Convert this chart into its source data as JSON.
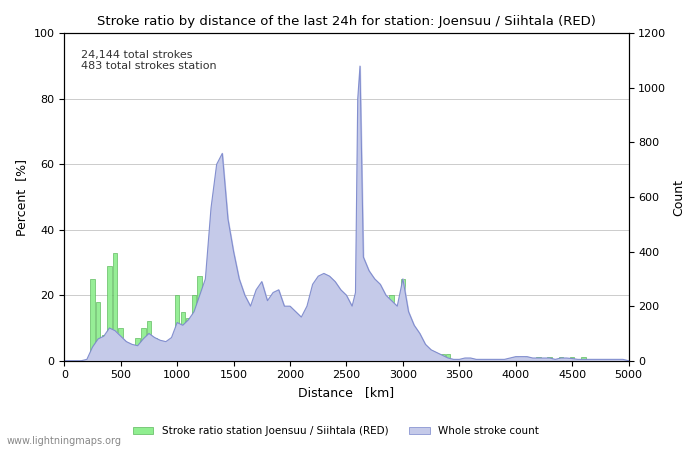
{
  "title": "Stroke ratio by distance of the last 24h for station: Joensuu / Siihtala (RED)",
  "annotation_line1": "24,144 total strokes",
  "annotation_line2": "483 total strokes station",
  "xlabel": "Distance   [km]",
  "ylabel_left": "Percent  [%]",
  "ylabel_right": "Count",
  "xlim": [
    0,
    5000
  ],
  "ylim_left": [
    0,
    100
  ],
  "ylim_right": [
    0,
    1200
  ],
  "yticks_left": [
    0,
    20,
    40,
    60,
    80,
    100
  ],
  "yticks_right": [
    0,
    200,
    400,
    600,
    800,
    1000,
    1200
  ],
  "xticks": [
    0,
    500,
    1000,
    1500,
    2000,
    2500,
    3000,
    3500,
    4000,
    4500,
    5000
  ],
  "watermark": "www.lightningmaps.org",
  "legend_green": "Stroke ratio station Joensuu / Siihtala (RED)",
  "legend_blue": "Whole stroke count",
  "bg_color": "#ffffff",
  "grid_color": "#cccccc",
  "green_color": "#90ee90",
  "green_edge": "#5cb85c",
  "blue_color": "#c5cae9",
  "blue_edge": "#7986cb",
  "green_x": [
    250,
    300,
    350,
    400,
    450,
    500,
    550,
    600,
    650,
    700,
    750,
    800,
    850,
    900,
    950,
    1000,
    1050,
    1100,
    1150,
    1200,
    1250,
    1300,
    1350,
    1400,
    1450,
    1500,
    1550,
    1600,
    1650,
    1700,
    1750,
    1800,
    1850,
    1900,
    1950,
    2000,
    2050,
    2100,
    2150,
    2200,
    2250,
    2300,
    2350,
    2400,
    2450,
    2500,
    2550,
    2600,
    2650,
    2700,
    2750,
    2800,
    2850,
    2900,
    2950,
    3000,
    3050,
    3300,
    3350,
    3400,
    4000,
    4100,
    4200,
    4300,
    4400,
    4500,
    4600
  ],
  "green_y": [
    25,
    18,
    8,
    29,
    33,
    10,
    5,
    4,
    7,
    10,
    12,
    7,
    4,
    3,
    5,
    20,
    15,
    13,
    20,
    26,
    8,
    6,
    2,
    7,
    2,
    3,
    2,
    2,
    1,
    2,
    3,
    1,
    2,
    2,
    1,
    4,
    3,
    2,
    2,
    2,
    2,
    2,
    1,
    1,
    1,
    2,
    1,
    1,
    1,
    2,
    3,
    15,
    17,
    20,
    16,
    25,
    2,
    2,
    2,
    2,
    1,
    1,
    1,
    1,
    1,
    1,
    1
  ],
  "blue_x": [
    0,
    50,
    100,
    150,
    200,
    250,
    300,
    350,
    400,
    450,
    500,
    550,
    600,
    650,
    700,
    750,
    800,
    850,
    900,
    950,
    1000,
    1050,
    1100,
    1150,
    1200,
    1250,
    1300,
    1350,
    1400,
    1450,
    1500,
    1550,
    1600,
    1650,
    1700,
    1750,
    1800,
    1850,
    1900,
    1950,
    2000,
    2050,
    2100,
    2150,
    2200,
    2250,
    2300,
    2350,
    2400,
    2450,
    2500,
    2550,
    2580,
    2600,
    2620,
    2650,
    2700,
    2750,
    2800,
    2850,
    2900,
    2950,
    3000,
    3050,
    3100,
    3150,
    3200,
    3250,
    3300,
    3350,
    3400,
    3450,
    3500,
    3550,
    3600,
    3650,
    3700,
    3750,
    3800,
    3850,
    3900,
    3950,
    4000,
    4050,
    4100,
    4150,
    4200,
    4250,
    4300,
    4350,
    4400,
    4450,
    4500,
    4550,
    4600,
    4650,
    4700,
    4750,
    4800,
    4850,
    4900,
    4950,
    5000
  ],
  "blue_y": [
    0,
    0,
    0,
    0,
    5,
    50,
    80,
    90,
    120,
    110,
    90,
    70,
    60,
    55,
    80,
    100,
    85,
    75,
    70,
    85,
    140,
    130,
    150,
    180,
    240,
    300,
    560,
    720,
    760,
    520,
    400,
    300,
    240,
    200,
    260,
    290,
    220,
    250,
    260,
    200,
    200,
    180,
    160,
    200,
    280,
    310,
    320,
    310,
    290,
    260,
    240,
    200,
    250,
    960,
    1080,
    380,
    330,
    300,
    280,
    240,
    220,
    200,
    300,
    180,
    130,
    100,
    60,
    40,
    30,
    20,
    10,
    5,
    5,
    10,
    10,
    5,
    5,
    5,
    5,
    5,
    5,
    10,
    15,
    15,
    15,
    10,
    10,
    10,
    10,
    5,
    10,
    10,
    8,
    5,
    5,
    5,
    5,
    5,
    5,
    5,
    5,
    5,
    0
  ]
}
